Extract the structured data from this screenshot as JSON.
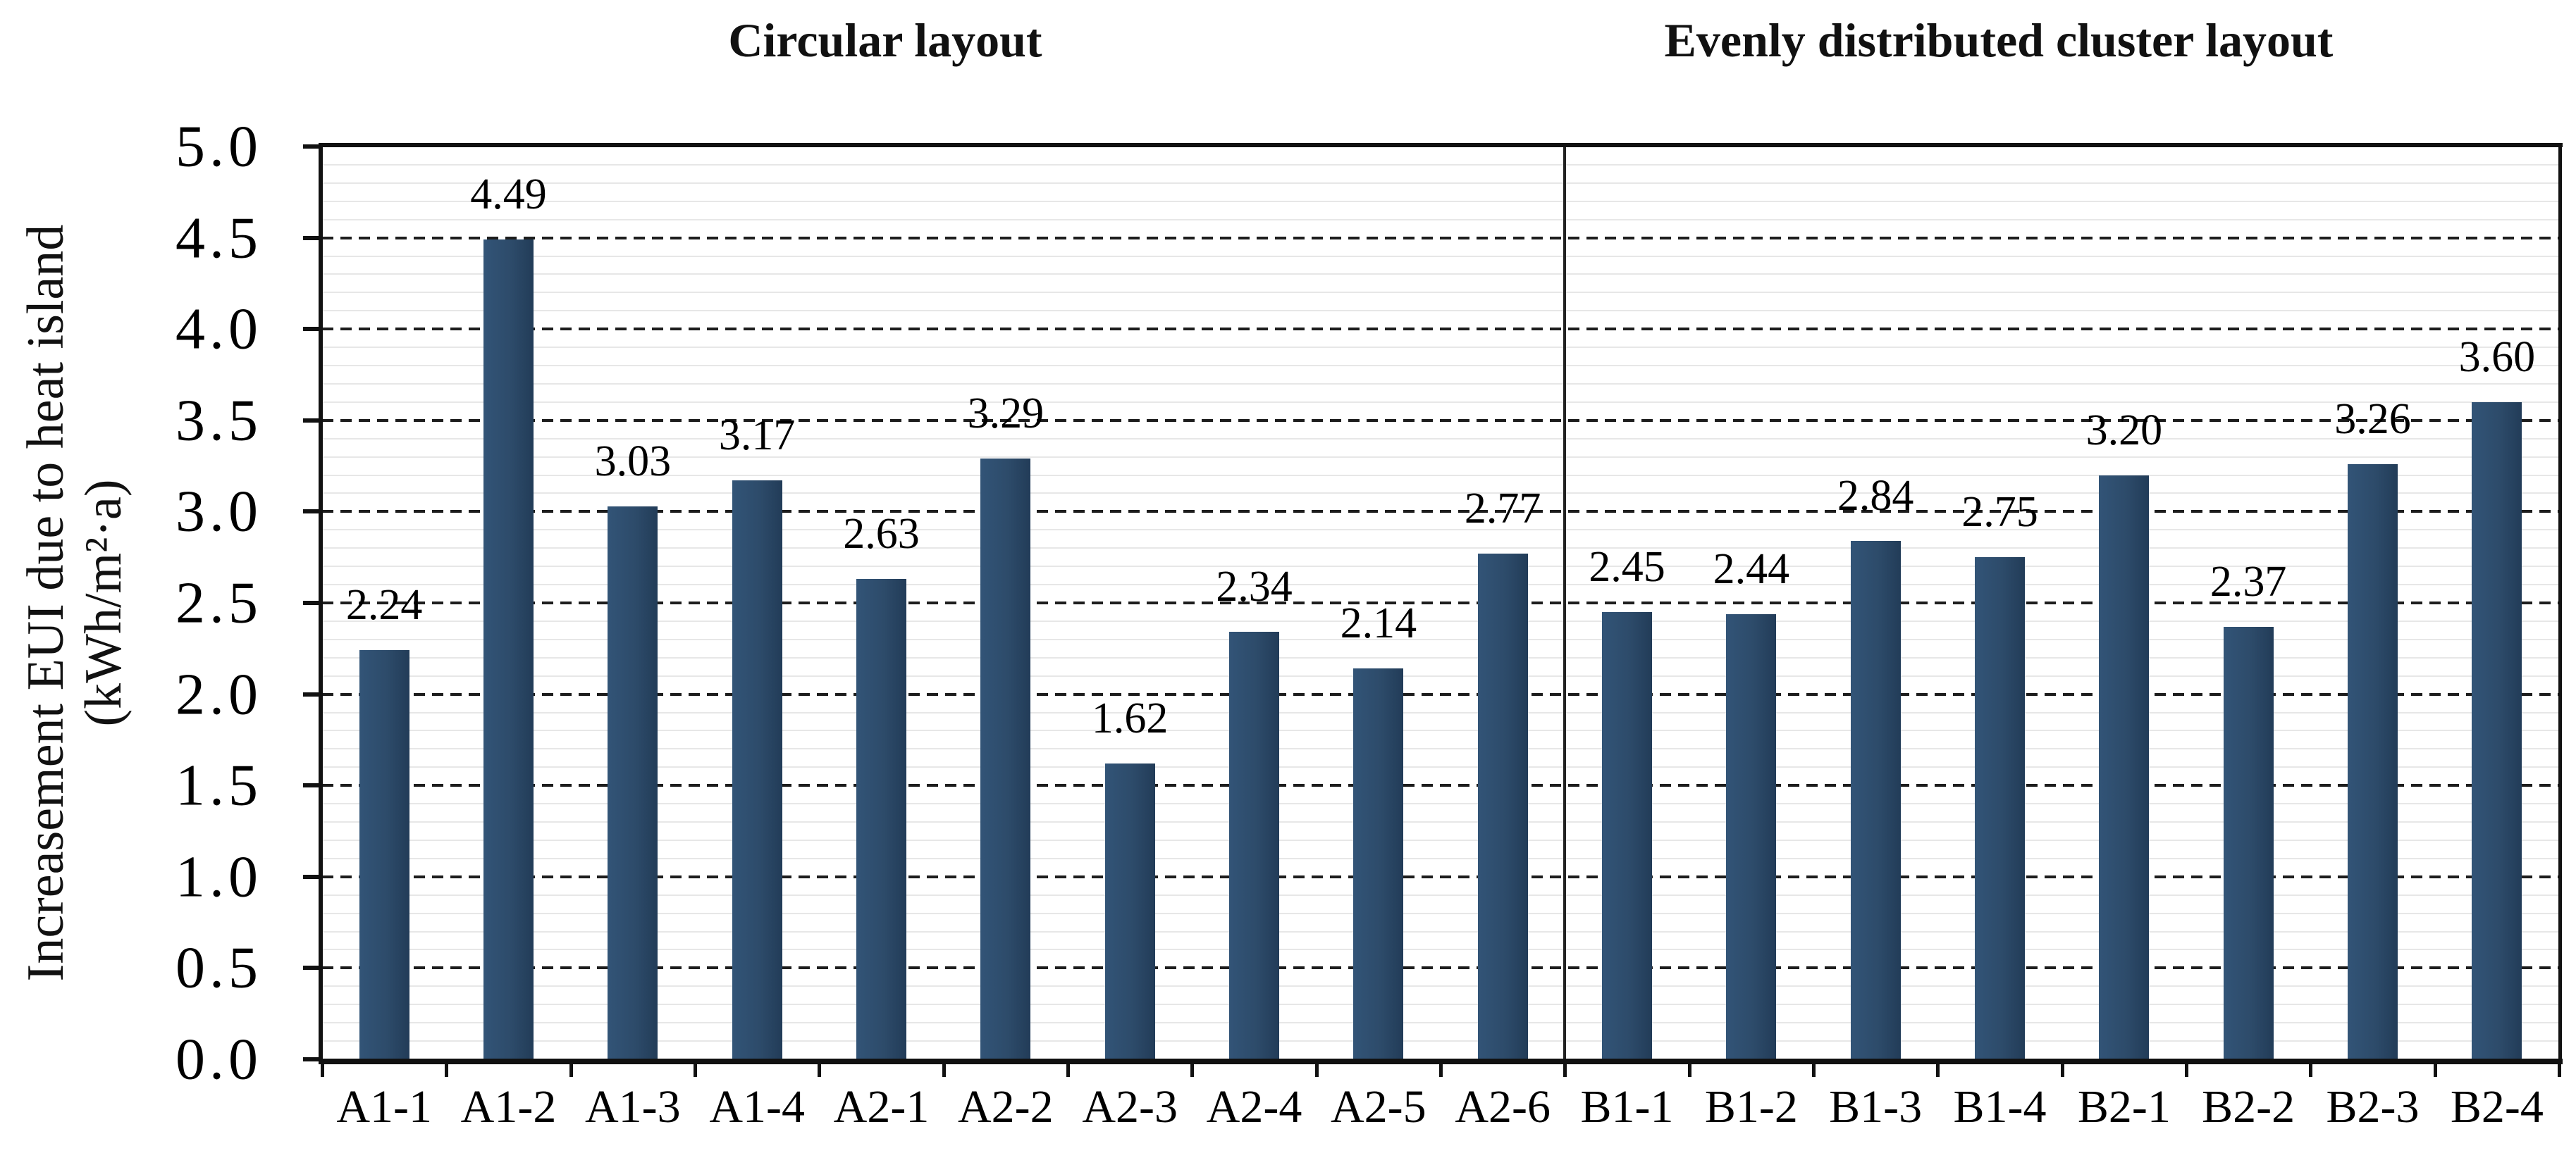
{
  "figure": {
    "ylabel_line1": "Increasement EUI due to heat island",
    "ylabel_line2": "(kWh/m²·a)"
  },
  "chart_data": {
    "type": "bar",
    "title": "",
    "ylabel": "Increasement EUI due to heat island (kWh/m²·a)",
    "xlabel": "",
    "ylim": [
      0.0,
      5.0
    ],
    "ytick_step": 0.5,
    "ytick_labels": [
      "0.0",
      "0.5",
      "1.0",
      "1.5",
      "2.0",
      "2.5",
      "3.0",
      "3.5",
      "4.0",
      "4.5",
      "5.0"
    ],
    "minor_tick_step": 0.1,
    "grid": "horizontal: major dashed black at 0.5 steps, minor light gray at 0.1 steps",
    "legend_position": "none",
    "value_labels_shown": true,
    "sections": [
      {
        "title": "Circular layout",
        "categories": [
          "A1-1",
          "A1-2",
          "A1-3",
          "A1-4",
          "A2-1",
          "A2-2",
          "A2-3",
          "A2-4",
          "A2-5",
          "A2-6"
        ],
        "values": [
          2.24,
          4.49,
          3.03,
          3.17,
          2.63,
          3.29,
          1.62,
          2.34,
          2.14,
          2.77
        ]
      },
      {
        "title": "Evenly distributed cluster layout",
        "categories": [
          "B1-1",
          "B1-2",
          "B1-3",
          "B1-4",
          "B2-1",
          "B2-2",
          "B2-3",
          "B2-4"
        ],
        "values": [
          2.45,
          2.44,
          2.84,
          2.75,
          3.2,
          2.37,
          3.26,
          3.6
        ]
      }
    ],
    "colors": {
      "bar_fill": "#2d4b6a",
      "bar_fill_light": "#325477",
      "bar_edge_dark": "#223c58",
      "grid_major": "#1d1d1d",
      "grid_minor": "#e7e7e7",
      "axis": "#111111",
      "text": "#000000"
    }
  }
}
